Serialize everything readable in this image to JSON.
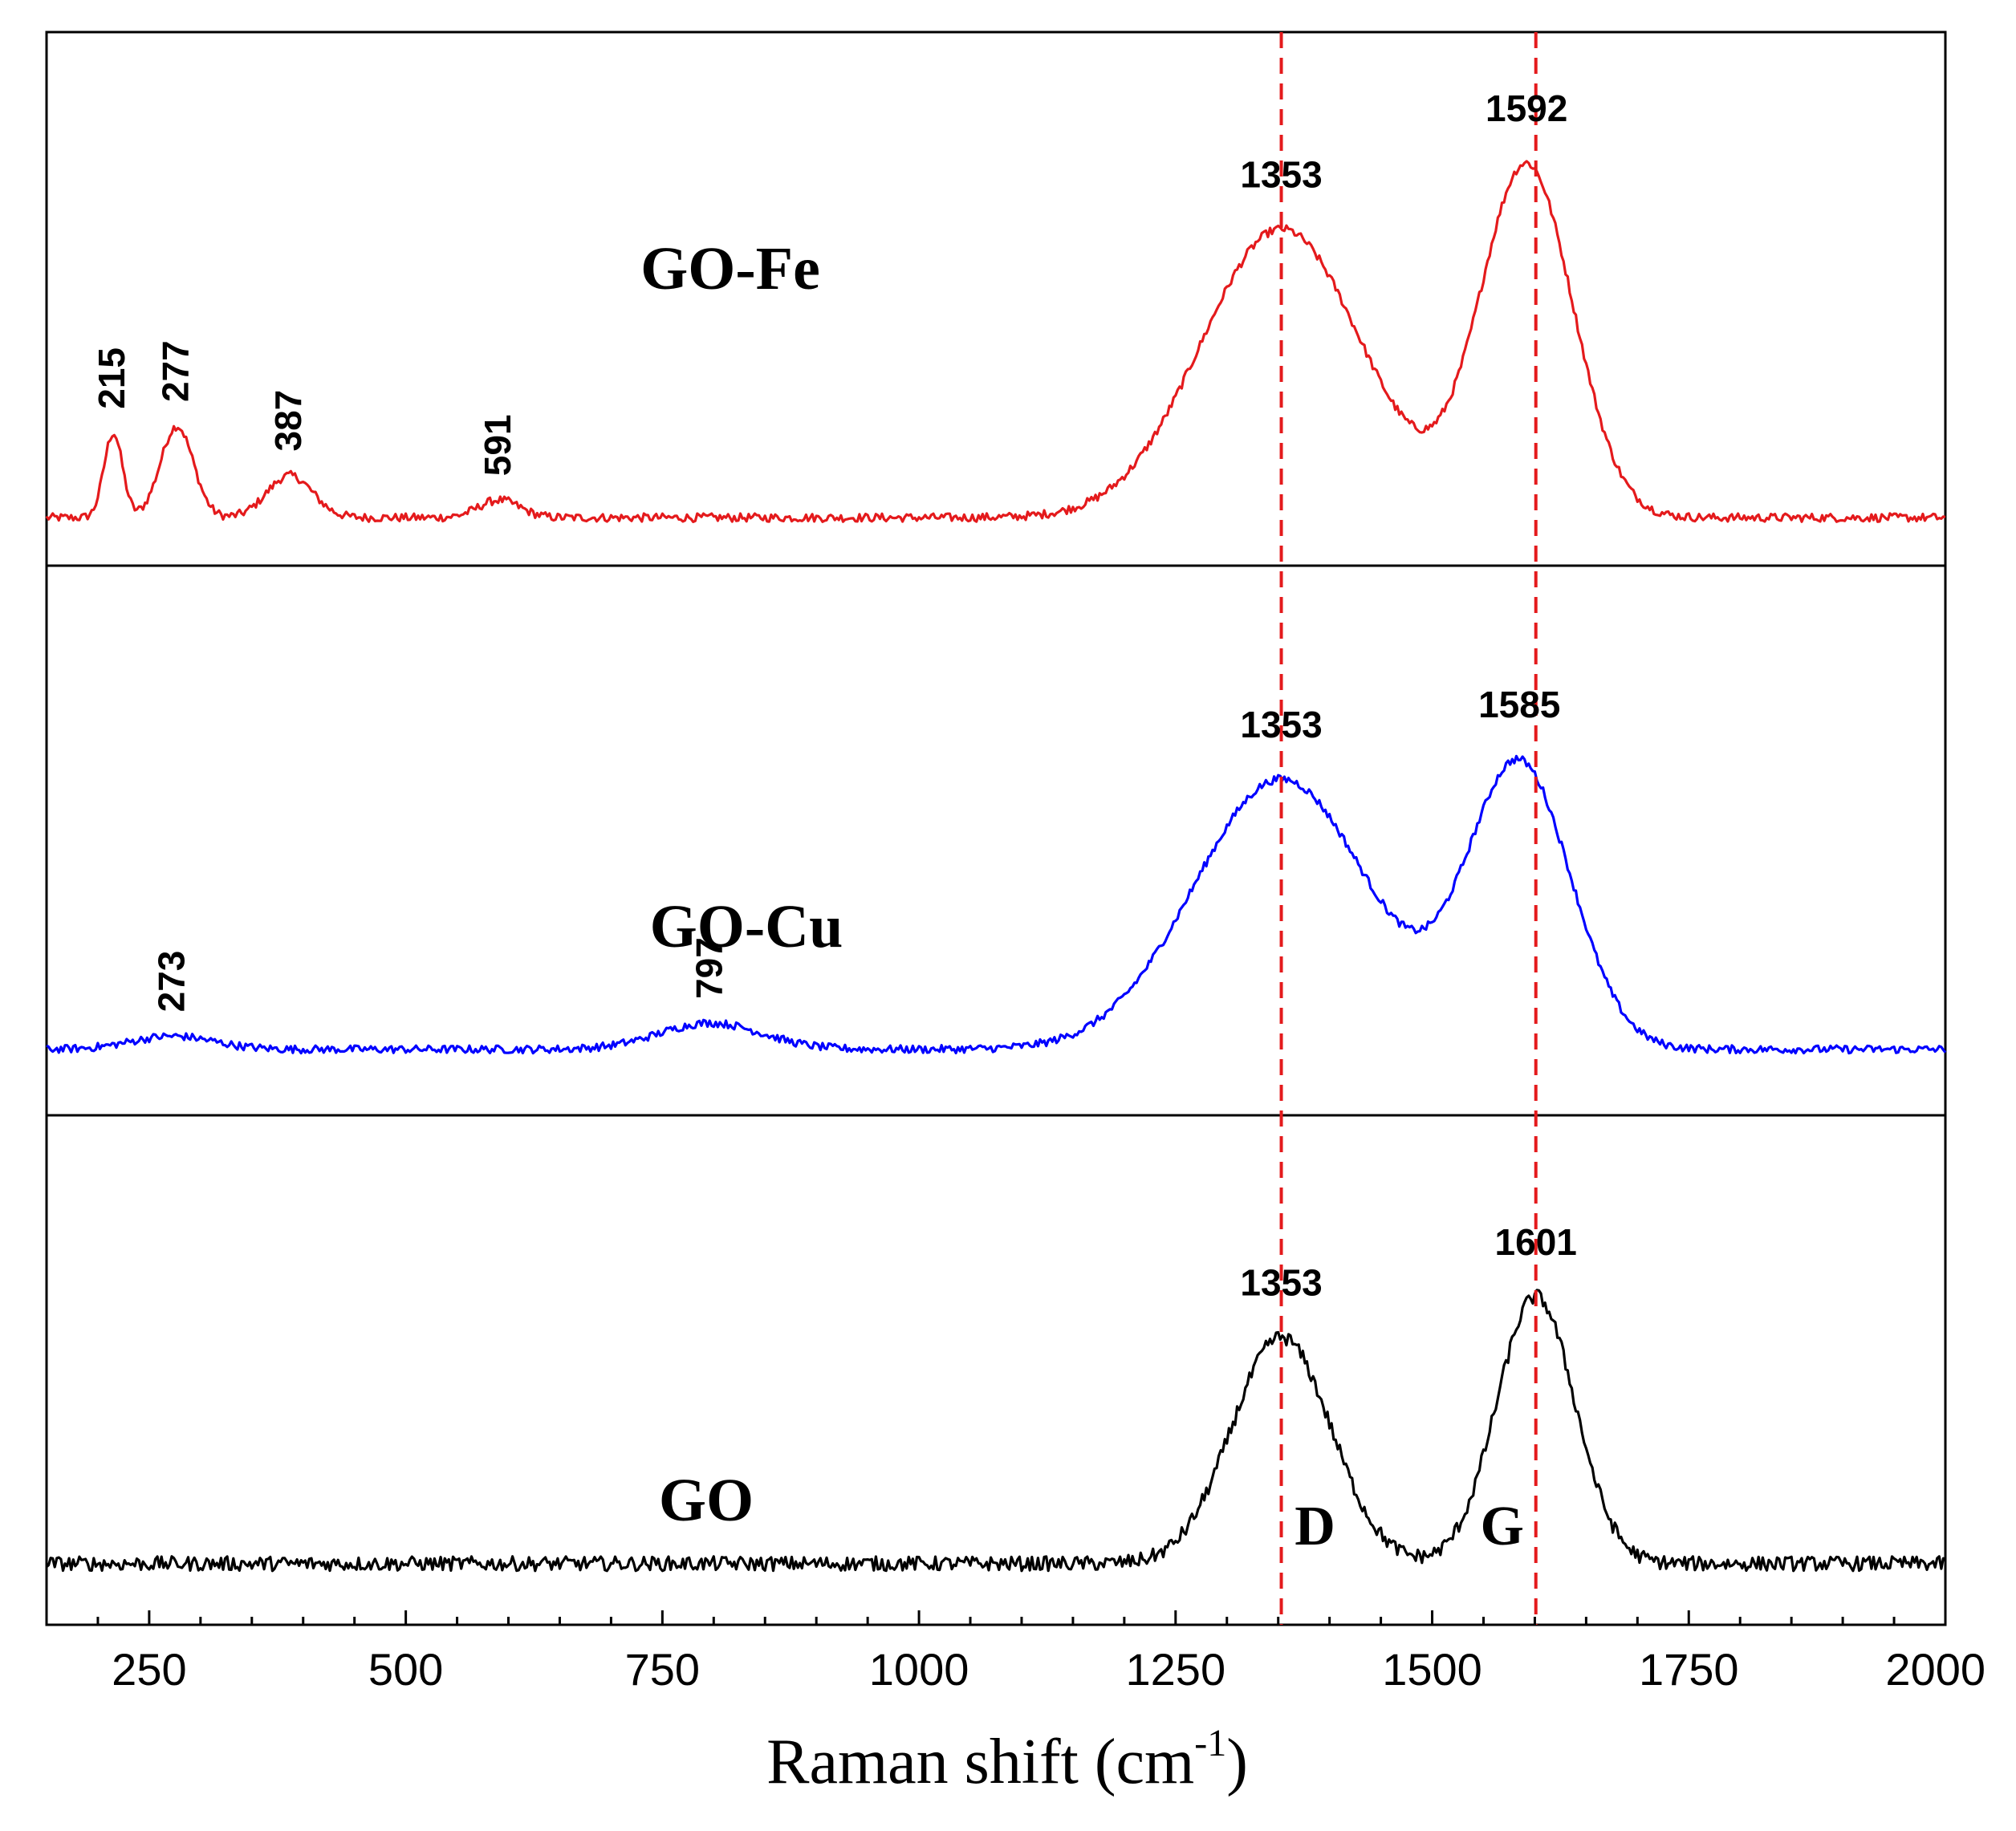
{
  "chart_data": {
    "type": "line",
    "title": "",
    "xlabel": "Raman shift (cm",
    "xlabel_sup": "-1",
    "xlabel_end": ")",
    "ylabel": "",
    "xlim": [
      150,
      2000
    ],
    "x_ticks": [
      250,
      500,
      750,
      1000,
      1250,
      1500,
      1750,
      2000
    ],
    "x_tick_labels": [
      "250",
      "500",
      "750",
      "1000",
      "1250",
      "1500",
      "1750",
      "2000"
    ],
    "reference_lines": [
      {
        "x": 1353,
        "label": "D",
        "color": "#e41a1c",
        "style": "dashed"
      },
      {
        "x": 1601,
        "label": "G",
        "color": "#e41a1c",
        "style": "dashed"
      }
    ],
    "series": [
      {
        "name": "GO-Fe",
        "color": "#e41a1c",
        "panel": "top",
        "baseline": 0.05,
        "peaks": [
          {
            "x": 215,
            "height": 0.24,
            "width": 9
          },
          {
            "x": 277,
            "height": 0.26,
            "width": 16
          },
          {
            "x": 387,
            "height": 0.12,
            "width": 22
          },
          {
            "x": 591,
            "height": 0.05,
            "width": 20
          },
          {
            "x": 1353,
            "height": 0.82,
            "width": 78
          },
          {
            "x": 1592,
            "height": 1.0,
            "width": 45
          }
        ],
        "peak_labels": [
          {
            "x": 215,
            "text": "215",
            "rotated": true
          },
          {
            "x": 277,
            "text": "277",
            "rotated": true
          },
          {
            "x": 387,
            "text": "387",
            "rotated": true
          },
          {
            "x": 591,
            "text": "591",
            "rotated": true
          },
          {
            "x": 1353,
            "text": "1353",
            "rotated": false
          },
          {
            "x": 1592,
            "text": "1592",
            "rotated": false
          }
        ]
      },
      {
        "name": "GO-Cu",
        "color": "#0000ff",
        "panel": "middle",
        "baseline": 0.05,
        "peaks": [
          {
            "x": 273,
            "height": 0.04,
            "width": 40
          },
          {
            "x": 797,
            "height": 0.08,
            "width": 50
          },
          {
            "x": 1353,
            "height": 0.82,
            "width": 85
          },
          {
            "x": 1585,
            "height": 0.86,
            "width": 50
          }
        ],
        "peak_labels": [
          {
            "x": 273,
            "text": "273",
            "rotated": true
          },
          {
            "x": 797,
            "text": "797",
            "rotated": true
          },
          {
            "x": 1353,
            "text": "1353",
            "rotated": false
          },
          {
            "x": 1585,
            "text": "1585",
            "rotated": false
          }
        ]
      },
      {
        "name": "GO",
        "color": "#000000",
        "panel": "bottom",
        "baseline": 0.1,
        "peaks": [
          {
            "x": 1353,
            "height": 0.78,
            "width": 48
          },
          {
            "x": 1601,
            "height": 0.92,
            "width": 38
          }
        ],
        "peak_labels": [
          {
            "x": 1353,
            "text": "1353",
            "rotated": false
          },
          {
            "x": 1601,
            "text": "1601",
            "rotated": false
          }
        ]
      }
    ]
  }
}
